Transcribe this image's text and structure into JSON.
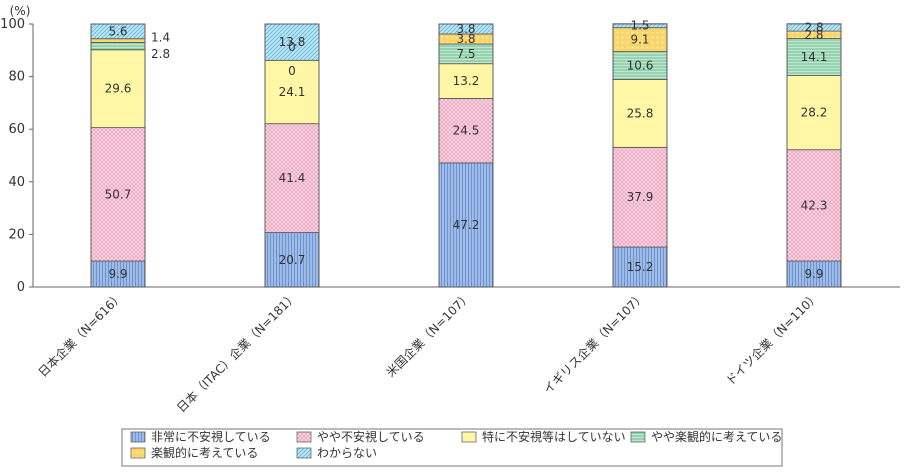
{
  "chart_data": {
    "type": "bar",
    "stacked": true,
    "unit_label": "(%)",
    "ylim": [
      0,
      100
    ],
    "yticks": [
      0,
      20,
      40,
      60,
      80,
      100
    ],
    "categories": [
      "日本企業（N=616）",
      "日本（ITAC）企業（N=181）",
      "米国企業（N=107）",
      "イギリス企業（N=107）",
      "ドイツ企業（N=110）"
    ],
    "series": [
      {
        "name": "非常に不安視している",
        "color": "#9dbbe6",
        "pattern": "vlines",
        "values": [
          9.9,
          20.7,
          47.2,
          15.2,
          9.9
        ]
      },
      {
        "name": "やや不安視している",
        "color": "#f7c6d6",
        "pattern": "crosshatch",
        "values": [
          50.7,
          41.4,
          24.5,
          37.9,
          42.3
        ]
      },
      {
        "name": "特に不安視等はしていない",
        "color": "#fff7a6",
        "pattern": "none",
        "values": [
          29.6,
          24.1,
          13.2,
          25.8,
          28.2
        ]
      },
      {
        "name": "やや楽観的に考えている",
        "color": "#a8dcc0",
        "pattern": "hlines",
        "values": [
          2.8,
          0,
          7.5,
          10.6,
          14.1
        ]
      },
      {
        "name": "楽観的に考えている",
        "color": "#f9d66e",
        "pattern": "dots",
        "values": [
          1.4,
          0,
          3.8,
          9.1,
          2.8
        ]
      },
      {
        "name": "わからない",
        "color": "#a9dcf2",
        "pattern": "diag",
        "values": [
          5.6,
          13.8,
          3.8,
          1.5,
          2.8
        ]
      }
    ],
    "value_labels": [
      [
        "9.9",
        "50.7",
        "29.6",
        "2.8",
        "1.4",
        "5.6"
      ],
      [
        "20.7",
        "41.4",
        "24.1",
        "0",
        "0",
        "13.8"
      ],
      [
        "47.2",
        "24.5",
        "13.2",
        "7.5",
        "3.8",
        "3.8"
      ],
      [
        "15.2",
        "37.9",
        "25.8",
        "10.6",
        "9.1",
        "1.5"
      ],
      [
        "9.9",
        "42.3",
        "28.2",
        "14.1",
        "2.8",
        "2.8"
      ]
    ],
    "legend_position": "bottom"
  }
}
